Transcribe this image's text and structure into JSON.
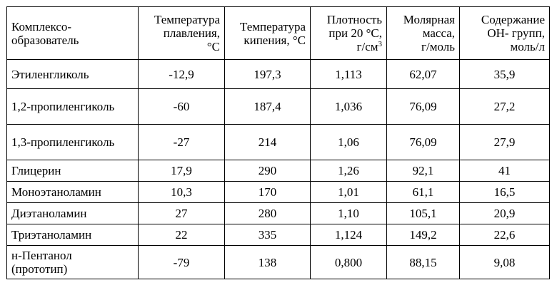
{
  "table": {
    "headers": [
      [
        "Комплексо-",
        "образователь"
      ],
      [
        "Температура",
        "плавления,",
        "°С"
      ],
      [
        "Температура",
        "кипения, °С"
      ],
      [
        "Плотность",
        "при 20 °С,",
        "г/см",
        "3"
      ],
      [
        "Молярная",
        "масса,",
        "г/моль"
      ],
      [
        "Содержание",
        "ОН- групп,",
        "моль/л"
      ]
    ],
    "rows": [
      {
        "name": [
          "Этиленгликоль"
        ],
        "melting": "-12,9",
        "boiling": "197,3",
        "density": "1,113",
        "molar_mass": "62,07",
        "oh_content": "35,9"
      },
      {
        "name": [
          "1,2-пропиленгиколь"
        ],
        "melting": "-60",
        "boiling": "187,4",
        "density": "1,036",
        "molar_mass": "76,09",
        "oh_content": "27,2"
      },
      {
        "name": [
          "1,3-пропиленгиколь"
        ],
        "melting": "-27",
        "boiling": "214",
        "density": "1,06",
        "molar_mass": "76,09",
        "oh_content": "27,9"
      },
      {
        "name": [
          "Глицерин"
        ],
        "melting": "17,9",
        "boiling": "290",
        "density": "1,26",
        "molar_mass": "92,1",
        "oh_content": "41"
      },
      {
        "name": [
          "Моноэтаноламин"
        ],
        "melting": "10,3",
        "boiling": "170",
        "density": "1,01",
        "molar_mass": "61,1",
        "oh_content": "16,5"
      },
      {
        "name": [
          "Диэтаноламин"
        ],
        "melting": "27",
        "boiling": "280",
        "density": "1,10",
        "molar_mass": "105,1",
        "oh_content": "20,9"
      },
      {
        "name": [
          "Триэтаноламин"
        ],
        "melting": "22",
        "boiling": "335",
        "density": "1,124",
        "molar_mass": "149,2",
        "oh_content": "22,6"
      },
      {
        "name": [
          "н-Пентанол",
          "(прототип)"
        ],
        "melting": "-79",
        "boiling": "138",
        "density": "0,800",
        "molar_mass": "88,15",
        "oh_content": "9,08"
      }
    ]
  }
}
